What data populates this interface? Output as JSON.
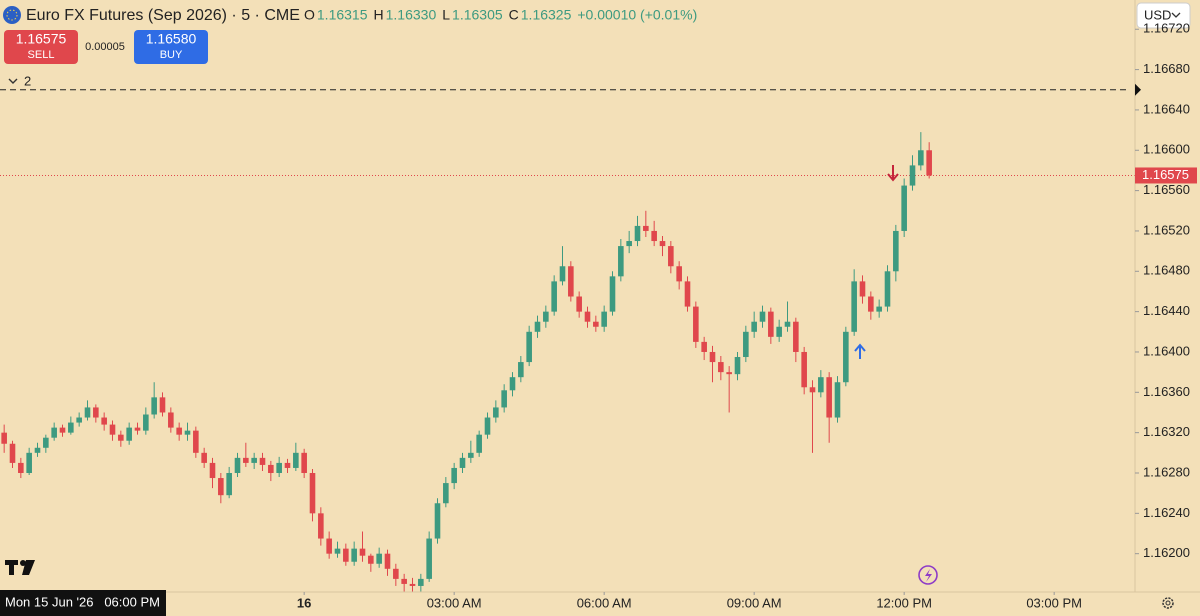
{
  "header": {
    "symbol": "Euro FX Futures (Sep 2026) · 5 · CME",
    "ohlc": [
      {
        "key": "O",
        "value": "1.16315"
      },
      {
        "key": "H",
        "value": "1.16330"
      },
      {
        "key": "L",
        "value": "1.16305"
      },
      {
        "key": "C",
        "value": "1.16325"
      }
    ],
    "change": "+0.00010 (+0.01%)"
  },
  "trade": {
    "sell_price": "1.16575",
    "sell_label": "SELL",
    "spread": "0.00005",
    "buy_price": "1.16580",
    "buy_label": "BUY"
  },
  "indicators_toggle": "2",
  "currency": "USD",
  "crosshair_time": "Mon 15 Jun '26   06:00 PM",
  "chart_data": {
    "type": "candlestick",
    "up_color": "#3d9a80",
    "down_color": "#e0474c",
    "ohlc": [
      [
        1.1632,
        1.16328,
        1.163,
        1.16309
      ],
      [
        1.16309,
        1.16312,
        1.16285,
        1.1629
      ],
      [
        1.1629,
        1.16295,
        1.16275,
        1.1628
      ],
      [
        1.1628,
        1.16305,
        1.16278,
        1.163
      ],
      [
        1.163,
        1.1631,
        1.16296,
        1.16305
      ],
      [
        1.16305,
        1.16318,
        1.163,
        1.16315
      ],
      [
        1.16315,
        1.1633,
        1.16312,
        1.16325
      ],
      [
        1.16325,
        1.16328,
        1.16316,
        1.1632
      ],
      [
        1.1632,
        1.16336,
        1.16318,
        1.1633
      ],
      [
        1.1633,
        1.1634,
        1.16326,
        1.16335
      ],
      [
        1.16335,
        1.16352,
        1.16332,
        1.16345
      ],
      [
        1.16345,
        1.16348,
        1.1633,
        1.16335
      ],
      [
        1.16335,
        1.1634,
        1.16322,
        1.16328
      ],
      [
        1.16328,
        1.16332,
        1.16312,
        1.16318
      ],
      [
        1.16318,
        1.16322,
        1.16306,
        1.16312
      ],
      [
        1.16312,
        1.1633,
        1.16308,
        1.16325
      ],
      [
        1.16325,
        1.1633,
        1.16318,
        1.16322
      ],
      [
        1.16322,
        1.16345,
        1.16318,
        1.16338
      ],
      [
        1.16338,
        1.1637,
        1.16334,
        1.16355
      ],
      [
        1.16355,
        1.1636,
        1.16336,
        1.1634
      ],
      [
        1.1634,
        1.16345,
        1.1632,
        1.16325
      ],
      [
        1.16325,
        1.1633,
        1.16312,
        1.16318
      ],
      [
        1.16318,
        1.1633,
        1.16312,
        1.16322
      ],
      [
        1.16322,
        1.16326,
        1.16295,
        1.163
      ],
      [
        1.163,
        1.16305,
        1.16285,
        1.1629
      ],
      [
        1.1629,
        1.16295,
        1.16265,
        1.16275
      ],
      [
        1.16275,
        1.1628,
        1.1625,
        1.16258
      ],
      [
        1.16258,
        1.16286,
        1.16255,
        1.1628
      ],
      [
        1.1628,
        1.163,
        1.16276,
        1.16295
      ],
      [
        1.16295,
        1.1631,
        1.16286,
        1.1629
      ],
      [
        1.1629,
        1.163,
        1.16284,
        1.16295
      ],
      [
        1.16295,
        1.163,
        1.16282,
        1.16288
      ],
      [
        1.16288,
        1.16292,
        1.16272,
        1.1628
      ],
      [
        1.1628,
        1.16296,
        1.16276,
        1.1629
      ],
      [
        1.1629,
        1.16294,
        1.1628,
        1.16285
      ],
      [
        1.16285,
        1.1631,
        1.16282,
        1.163
      ],
      [
        1.163,
        1.16304,
        1.16275,
        1.1628
      ],
      [
        1.1628,
        1.16284,
        1.16232,
        1.1624
      ],
      [
        1.1624,
        1.16246,
        1.16208,
        1.16215
      ],
      [
        1.16215,
        1.16222,
        1.16195,
        1.162
      ],
      [
        1.162,
        1.16212,
        1.16196,
        1.16205
      ],
      [
        1.16205,
        1.1621,
        1.16188,
        1.16192
      ],
      [
        1.16192,
        1.16212,
        1.16188,
        1.16205
      ],
      [
        1.16205,
        1.16222,
        1.16192,
        1.16198
      ],
      [
        1.16198,
        1.162,
        1.16182,
        1.1619
      ],
      [
        1.1619,
        1.16206,
        1.16186,
        1.162
      ],
      [
        1.162,
        1.16204,
        1.16178,
        1.16185
      ],
      [
        1.16185,
        1.1619,
        1.16168,
        1.16175
      ],
      [
        1.16175,
        1.1618,
        1.16162,
        1.1617
      ],
      [
        1.1617,
        1.16176,
        1.16162,
        1.16168
      ],
      [
        1.16168,
        1.1618,
        1.16162,
        1.16175
      ],
      [
        1.16175,
        1.16222,
        1.16172,
        1.16215
      ],
      [
        1.16215,
        1.16255,
        1.1621,
        1.1625
      ],
      [
        1.1625,
        1.16276,
        1.16246,
        1.1627
      ],
      [
        1.1627,
        1.1629,
        1.16264,
        1.16285
      ],
      [
        1.16285,
        1.163,
        1.1628,
        1.16295
      ],
      [
        1.16295,
        1.16312,
        1.1629,
        1.163
      ],
      [
        1.163,
        1.16322,
        1.16296,
        1.16318
      ],
      [
        1.16318,
        1.1634,
        1.16314,
        1.16335
      ],
      [
        1.16335,
        1.16352,
        1.1633,
        1.16345
      ],
      [
        1.16345,
        1.16368,
        1.1634,
        1.16362
      ],
      [
        1.16362,
        1.1638,
        1.16356,
        1.16375
      ],
      [
        1.16375,
        1.16396,
        1.1637,
        1.1639
      ],
      [
        1.1639,
        1.16426,
        1.16386,
        1.1642
      ],
      [
        1.1642,
        1.16436,
        1.16414,
        1.1643
      ],
      [
        1.1643,
        1.16446,
        1.16424,
        1.1644
      ],
      [
        1.1644,
        1.16476,
        1.16436,
        1.1647
      ],
      [
        1.1647,
        1.16505,
        1.16466,
        1.16485
      ],
      [
        1.16485,
        1.1649,
        1.1645,
        1.16455
      ],
      [
        1.16455,
        1.1646,
        1.16434,
        1.1644
      ],
      [
        1.1644,
        1.16445,
        1.16424,
        1.1643
      ],
      [
        1.1643,
        1.16436,
        1.1642,
        1.16425
      ],
      [
        1.16425,
        1.16446,
        1.1642,
        1.1644
      ],
      [
        1.1644,
        1.1648,
        1.16436,
        1.16475
      ],
      [
        1.16475,
        1.16512,
        1.1647,
        1.16505
      ],
      [
        1.16505,
        1.1652,
        1.16498,
        1.1651
      ],
      [
        1.1651,
        1.16535,
        1.16505,
        1.16525
      ],
      [
        1.16525,
        1.1654,
        1.16514,
        1.1652
      ],
      [
        1.1652,
        1.1653,
        1.16505,
        1.1651
      ],
      [
        1.1651,
        1.16515,
        1.16495,
        1.16505
      ],
      [
        1.16505,
        1.1651,
        1.16478,
        1.16485
      ],
      [
        1.16485,
        1.1649,
        1.16462,
        1.1647
      ],
      [
        1.1647,
        1.16475,
        1.1644,
        1.16445
      ],
      [
        1.16445,
        1.1645,
        1.16404,
        1.1641
      ],
      [
        1.1641,
        1.16415,
        1.16392,
        1.164
      ],
      [
        1.164,
        1.16406,
        1.1637,
        1.1639
      ],
      [
        1.1639,
        1.16396,
        1.16372,
        1.1638
      ],
      [
        1.1638,
        1.16386,
        1.1634,
        1.16378
      ],
      [
        1.16378,
        1.164,
        1.16372,
        1.16395
      ],
      [
        1.16395,
        1.16426,
        1.1639,
        1.1642
      ],
      [
        1.1642,
        1.1644,
        1.16414,
        1.1643
      ],
      [
        1.1643,
        1.16446,
        1.16424,
        1.1644
      ],
      [
        1.1644,
        1.16444,
        1.16408,
        1.16415
      ],
      [
        1.16415,
        1.16432,
        1.1641,
        1.16425
      ],
      [
        1.16425,
        1.1645,
        1.1642,
        1.1643
      ],
      [
        1.1643,
        1.16434,
        1.1639,
        1.164
      ],
      [
        1.164,
        1.16405,
        1.16358,
        1.16365
      ],
      [
        1.16365,
        1.16372,
        1.163,
        1.1636
      ],
      [
        1.1636,
        1.16382,
        1.16355,
        1.16375
      ],
      [
        1.16375,
        1.1638,
        1.1631,
        1.16335
      ],
      [
        1.16335,
        1.16376,
        1.1633,
        1.1637
      ],
      [
        1.1637,
        1.16425,
        1.16366,
        1.1642
      ],
      [
        1.1642,
        1.16482,
        1.16416,
        1.1647
      ],
      [
        1.1647,
        1.16476,
        1.16448,
        1.16455
      ],
      [
        1.16455,
        1.1646,
        1.16432,
        1.1644
      ],
      [
        1.1644,
        1.16452,
        1.16434,
        1.16445
      ],
      [
        1.16445,
        1.16486,
        1.1644,
        1.1648
      ],
      [
        1.1648,
        1.16526,
        1.1647,
        1.1652
      ],
      [
        1.1652,
        1.16572,
        1.16514,
        1.16565
      ],
      [
        1.16565,
        1.16595,
        1.1656,
        1.16585
      ],
      [
        1.16585,
        1.16618,
        1.1658,
        1.166
      ],
      [
        1.166,
        1.16608,
        1.16572,
        1.16575
      ]
    ],
    "ylim": [
      1.16162,
      1.16749
    ],
    "yticks": [
      {
        "value": 1.162,
        "label": "1.16200"
      },
      {
        "value": 1.1624,
        "label": "1.16240"
      },
      {
        "value": 1.1628,
        "label": "1.16280"
      },
      {
        "value": 1.1632,
        "label": "1.16320"
      },
      {
        "value": 1.1636,
        "label": "1.16360"
      },
      {
        "value": 1.164,
        "label": "1.16400"
      },
      {
        "value": 1.1644,
        "label": "1.16440"
      },
      {
        "value": 1.1648,
        "label": "1.16480"
      },
      {
        "value": 1.1652,
        "label": "1.16520"
      },
      {
        "value": 1.1656,
        "label": "1.16560"
      },
      {
        "value": 1.166,
        "label": "1.16600"
      },
      {
        "value": 1.1664,
        "label": "1.16640"
      },
      {
        "value": 1.1668,
        "label": "1.16680"
      },
      {
        "value": 1.1672,
        "label": "1.16720"
      }
    ],
    "xlim": [
      -0.5,
      135.7
    ],
    "xticks": [
      {
        "value": 36,
        "label": "16"
      },
      {
        "value": 54,
        "label": "03:00 AM"
      },
      {
        "value": 72,
        "label": "06:00 AM"
      },
      {
        "value": 90,
        "label": "09:00 AM"
      },
      {
        "value": 108,
        "label": "12:00 PM"
      },
      {
        "value": 126,
        "label": "03:00 PM"
      }
    ],
    "last_price": {
      "value": 1.16575,
      "label": "1.16575"
    },
    "alert_level": 1.1666
  }
}
